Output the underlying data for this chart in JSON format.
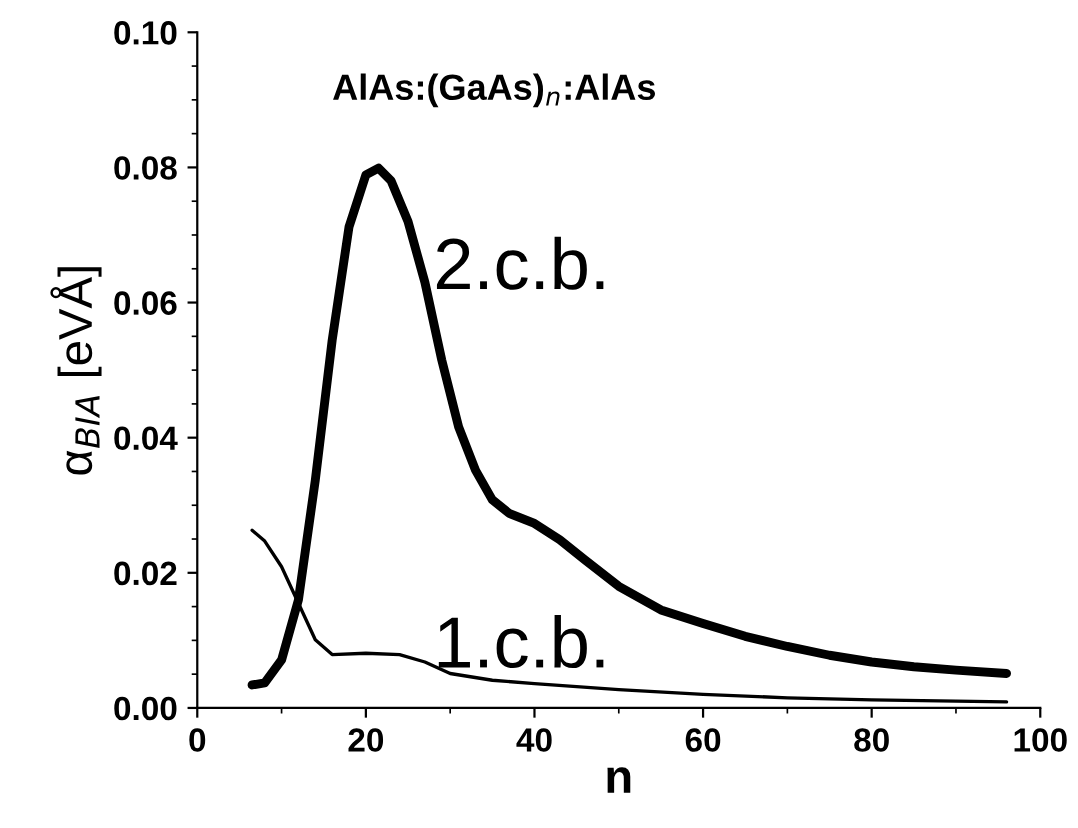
{
  "chart_data": {
    "type": "line",
    "title": "AlAs:(GaAs)$_{n}$:AlAs",
    "xlabel": "n",
    "ylabel": "α$_{BIA}$ [eVÅ]",
    "xlim": [
      0,
      100
    ],
    "xticks": [
      0,
      20,
      40,
      60,
      80,
      100
    ],
    "ylim": [
      0,
      0.1
    ],
    "yticks": [
      {
        "value": 0,
        "label": "0.00"
      },
      {
        "value": 0.02,
        "label": "0.02"
      },
      {
        "value": 0.04,
        "label": "0.04"
      },
      {
        "value": 0.06,
        "label": "0.06"
      },
      {
        "value": 0.08,
        "label": "0.08"
      },
      {
        "value": 0.1,
        "label": "0.10"
      }
    ],
    "grid": false,
    "marker": "none",
    "line_style": "solid",
    "series": [
      {
        "name": "2.c.b.",
        "color": "#000000",
        "x": [
          6.5,
          8,
          10,
          12,
          14,
          16,
          18,
          20,
          21.5,
          23,
          25,
          27,
          29,
          31,
          33,
          35,
          37,
          40,
          43,
          46,
          50,
          55,
          60,
          65,
          70,
          75,
          80,
          85,
          90,
          96
        ],
        "values": [
          0.0034,
          0.0037,
          0.0071,
          0.016,
          0.0337,
          0.0544,
          0.0712,
          0.0789,
          0.0799,
          0.078,
          0.072,
          0.063,
          0.0515,
          0.0416,
          0.0352,
          0.0308,
          0.0288,
          0.0273,
          0.0249,
          0.0219,
          0.018,
          0.0145,
          0.0125,
          0.0106,
          0.0091,
          0.0078,
          0.0068,
          0.0061,
          0.0056,
          0.0051
        ]
      },
      {
        "name": "1.c.b.",
        "color": "#000000",
        "x": [
          6.5,
          8,
          10,
          12,
          14,
          16,
          20,
          24,
          27,
          30,
          35,
          40,
          50,
          60,
          70,
          80,
          90,
          96
        ],
        "values": [
          0.0263,
          0.0247,
          0.0209,
          0.0155,
          0.0101,
          0.0079,
          0.0081,
          0.0079,
          0.0068,
          0.0051,
          0.0041,
          0.0036,
          0.0027,
          0.002,
          0.0015,
          0.0012,
          0.001,
          0.0009
        ]
      }
    ]
  }
}
